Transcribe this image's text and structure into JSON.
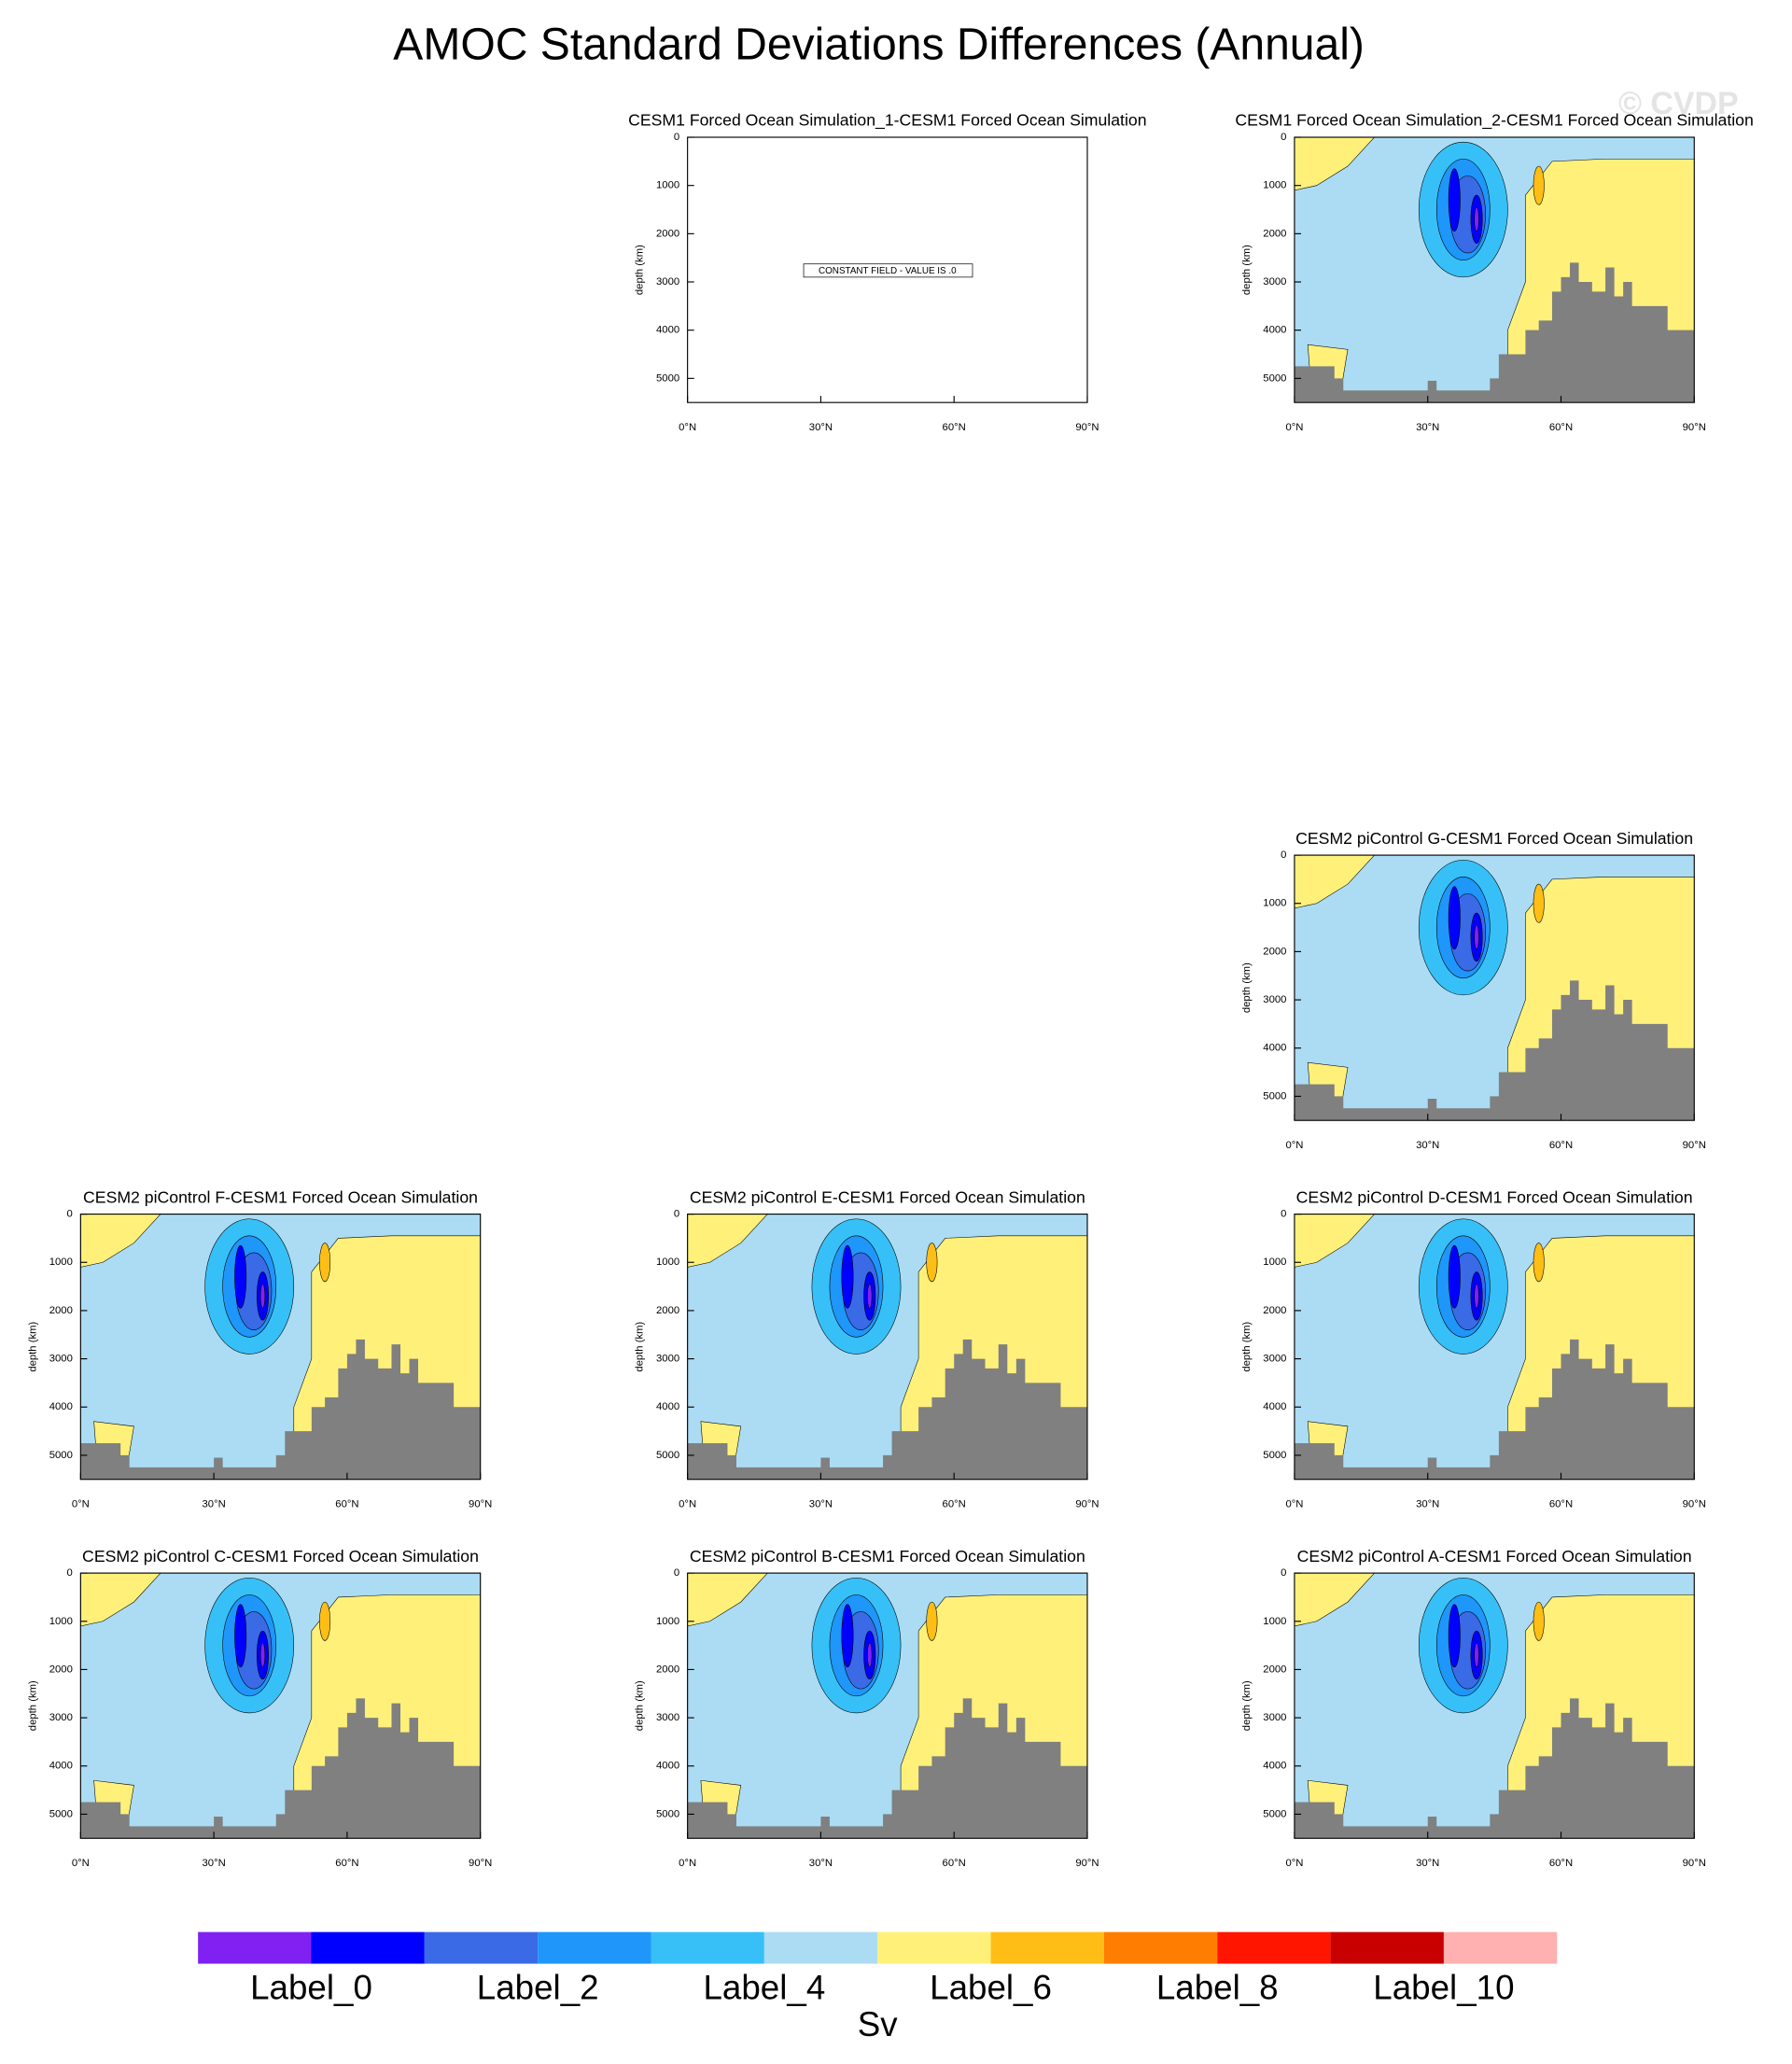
{
  "title": "AMOC Standard Deviations Differences (Annual)",
  "watermark": "© CVDP",
  "colorbar": {
    "colors": [
      "#8021f2",
      "#0000ff",
      "#3a6ae6",
      "#1e96fa",
      "#37c0f7",
      "#abdcf4",
      "#fff07a",
      "#ffbe15",
      "#ff7d00",
      "#ff1500",
      "#c80000",
      "#ffb0b0"
    ],
    "labels": [
      "Label_0",
      "Label_2",
      "Label_4",
      "Label_6",
      "Label_8",
      "Label_10"
    ],
    "unit": "Sv"
  },
  "chart_data": [
    {
      "type": "contour",
      "title": "CESM1 Forced Ocean Simulation_1-CESM1 Forced Ocean Simulation",
      "ylabel": "depth (km)",
      "annotation": "CONSTANT FIELD - VALUE IS .0",
      "xlim": [
        0,
        90
      ],
      "xticks": [
        {
          "value": 0,
          "label": "0°N"
        },
        {
          "value": 30,
          "label": "30°N"
        },
        {
          "value": 60,
          "label": "60°N"
        },
        {
          "value": 90,
          "label": "90°N"
        }
      ],
      "ylim": [
        0,
        5500
      ],
      "yreverse": true,
      "yticks": [
        0,
        1000,
        2000,
        3000,
        4000,
        5000
      ]
    },
    {
      "type": "contour",
      "title": "CESM1 Forced Ocean Simulation_2-CESM1 Forced Ocean Simulation",
      "ylabel": "depth (km)",
      "xlim": [
        0,
        90
      ],
      "xticks": [
        {
          "value": 0,
          "label": "0°N"
        },
        {
          "value": 30,
          "label": "30°N"
        },
        {
          "value": 60,
          "label": "60°N"
        },
        {
          "value": 90,
          "label": "90°N"
        }
      ],
      "ylim": [
        0,
        5500
      ],
      "yreverse": true,
      "yticks": [
        0,
        1000,
        2000,
        3000,
        4000,
        5000
      ]
    },
    {
      "type": "contour",
      "title": "CESM2 piControl G-CESM1 Forced Ocean Simulation",
      "ylabel": "depth (km)",
      "xlim": [
        0,
        90
      ],
      "xticks": [
        {
          "value": 0,
          "label": "0°N"
        },
        {
          "value": 30,
          "label": "30°N"
        },
        {
          "value": 60,
          "label": "60°N"
        },
        {
          "value": 90,
          "label": "90°N"
        }
      ],
      "ylim": [
        0,
        5500
      ],
      "yreverse": true,
      "yticks": [
        0,
        1000,
        2000,
        3000,
        4000,
        5000
      ]
    },
    {
      "type": "contour",
      "title": "CESM2 piControl F-CESM1 Forced Ocean Simulation",
      "ylabel": "depth (km)",
      "xlim": [
        0,
        90
      ],
      "xticks": [
        {
          "value": 0,
          "label": "0°N"
        },
        {
          "value": 30,
          "label": "30°N"
        },
        {
          "value": 60,
          "label": "60°N"
        },
        {
          "value": 90,
          "label": "90°N"
        }
      ],
      "ylim": [
        0,
        5500
      ],
      "yreverse": true,
      "yticks": [
        0,
        1000,
        2000,
        3000,
        4000,
        5000
      ]
    },
    {
      "type": "contour",
      "title": "CESM2 piControl E-CESM1 Forced Ocean Simulation",
      "ylabel": "depth (km)",
      "xlim": [
        0,
        90
      ],
      "xticks": [
        {
          "value": 0,
          "label": "0°N"
        },
        {
          "value": 30,
          "label": "30°N"
        },
        {
          "value": 60,
          "label": "60°N"
        },
        {
          "value": 90,
          "label": "90°N"
        }
      ],
      "ylim": [
        0,
        5500
      ],
      "yreverse": true,
      "yticks": [
        0,
        1000,
        2000,
        3000,
        4000,
        5000
      ]
    },
    {
      "type": "contour",
      "title": "CESM2 piControl D-CESM1 Forced Ocean Simulation",
      "ylabel": "depth (km)",
      "xlim": [
        0,
        90
      ],
      "xticks": [
        {
          "value": 0,
          "label": "0°N"
        },
        {
          "value": 30,
          "label": "30°N"
        },
        {
          "value": 60,
          "label": "60°N"
        },
        {
          "value": 90,
          "label": "90°N"
        }
      ],
      "ylim": [
        0,
        5500
      ],
      "yreverse": true,
      "yticks": [
        0,
        1000,
        2000,
        3000,
        4000,
        5000
      ]
    },
    {
      "type": "contour",
      "title": "CESM2 piControl C-CESM1 Forced Ocean Simulation",
      "ylabel": "depth (km)",
      "xlim": [
        0,
        90
      ],
      "xticks": [
        {
          "value": 0,
          "label": "0°N"
        },
        {
          "value": 30,
          "label": "30°N"
        },
        {
          "value": 60,
          "label": "60°N"
        },
        {
          "value": 90,
          "label": "90°N"
        }
      ],
      "ylim": [
        0,
        5500
      ],
      "yreverse": true,
      "yticks": [
        0,
        1000,
        2000,
        3000,
        4000,
        5000
      ]
    },
    {
      "type": "contour",
      "title": "CESM2 piControl B-CESM1 Forced Ocean Simulation",
      "ylabel": "depth (km)",
      "xlim": [
        0,
        90
      ],
      "xticks": [
        {
          "value": 0,
          "label": "0°N"
        },
        {
          "value": 30,
          "label": "30°N"
        },
        {
          "value": 60,
          "label": "60°N"
        },
        {
          "value": 90,
          "label": "90°N"
        }
      ],
      "ylim": [
        0,
        5500
      ],
      "yreverse": true,
      "yticks": [
        0,
        1000,
        2000,
        3000,
        4000,
        5000
      ]
    },
    {
      "type": "contour",
      "title": "CESM2 piControl A-CESM1 Forced Ocean Simulation",
      "ylabel": "depth (km)",
      "xlim": [
        0,
        90
      ],
      "xticks": [
        {
          "value": 0,
          "label": "0°N"
        },
        {
          "value": 30,
          "label": "30°N"
        },
        {
          "value": 60,
          "label": "60°N"
        },
        {
          "value": 90,
          "label": "90°N"
        }
      ],
      "ylim": [
        0,
        5500
      ],
      "yreverse": true,
      "yticks": [
        0,
        1000,
        2000,
        3000,
        4000,
        5000
      ]
    }
  ]
}
